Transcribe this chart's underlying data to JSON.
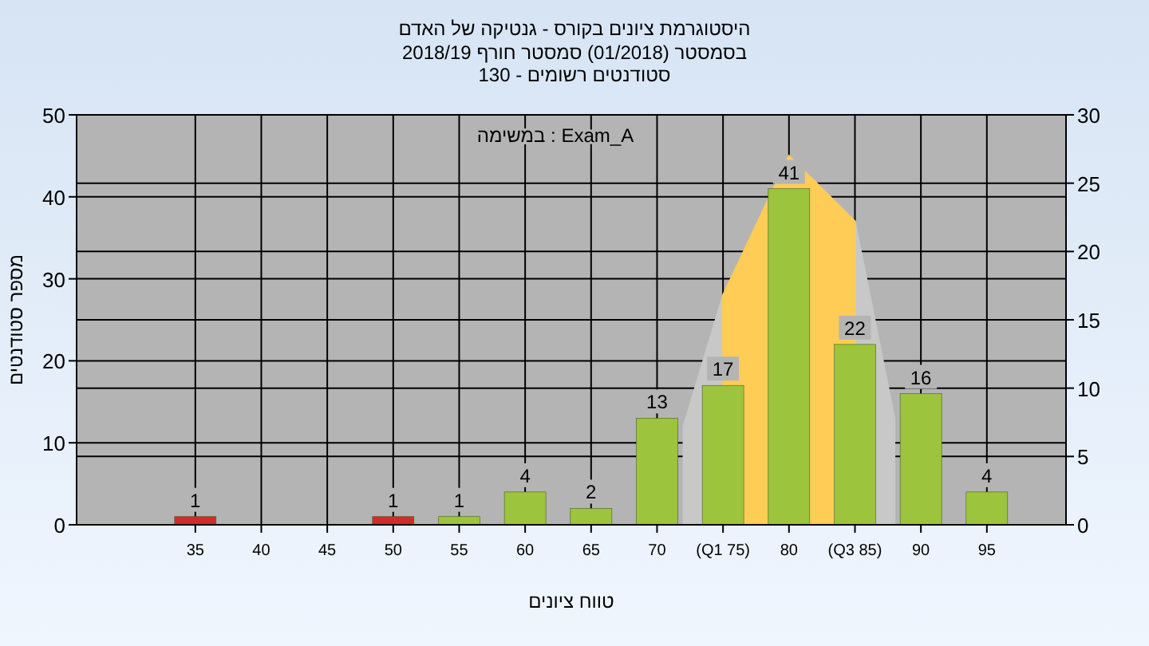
{
  "chart_data": {
    "type": "bar",
    "title": "היסטוגרמת ציונים בקורס - גנטיקה של האדם",
    "subtitle": "בסמסטר  (01/2018)  סמסטר חורף 2018/19\n130 - סטודנטים רשומים",
    "annotations": [
      "במשימה : Exam_A"
    ],
    "xlabel": "טווח ציונים",
    "ylabel": "מספר סטודנטים",
    "xlim": [
      26,
      101
    ],
    "xticks": [
      35,
      40,
      45,
      50,
      55,
      60,
      65,
      70,
      {
        "value": 75,
        "label": "(Q1 75)"
      },
      80,
      {
        "value": 85,
        "label": "(Q3 85)"
      },
      90,
      95
    ],
    "ylim": [
      0,
      50
    ],
    "yticks": [
      0,
      10,
      20,
      30,
      40,
      50
    ],
    "y2lim": [
      0,
      30
    ],
    "y2ticks": [
      0,
      5,
      10,
      15,
      20,
      25,
      30
    ],
    "grid": true,
    "series": [
      {
        "type": "area",
        "color": "#c8c8c8",
        "x": [
          72,
          75,
          80,
          85,
          88
        ],
        "values": [
          12,
          28,
          45,
          37,
          13
        ]
      },
      {
        "type": "area",
        "color": "#ffcc55",
        "x": [
          75,
          80,
          85
        ],
        "values": [
          28,
          45,
          37
        ]
      },
      {
        "x": [
          35,
          40,
          45,
          50,
          55,
          60,
          65,
          70,
          75,
          80,
          85,
          90,
          95
        ],
        "values": [
          1,
          0,
          0,
          1,
          1,
          4,
          2,
          13,
          17,
          41,
          22,
          16,
          4
        ],
        "value_labels": [
          "1",
          null,
          null,
          "1",
          "1",
          "4",
          "2",
          "13",
          "17",
          "41",
          "22",
          "16",
          "4"
        ],
        "colors": [
          "#d42a2a",
          "#9cc43c",
          "#9cc43c",
          "#d42a2a",
          "#9cc43c",
          "#9cc43c",
          "#9cc43c",
          "#9cc43c",
          "#9cc43c",
          "#9cc43c",
          "#9cc43c",
          "#9cc43c",
          "#9cc43c"
        ]
      }
    ]
  }
}
